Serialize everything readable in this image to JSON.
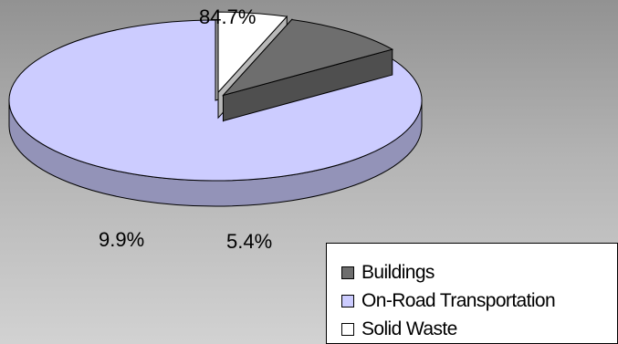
{
  "chart_data": {
    "type": "pie",
    "title": "",
    "slices": [
      {
        "label": "Buildings",
        "value": 9.9,
        "value_label": "9.9%",
        "color": "#6e6e6e"
      },
      {
        "label": "On-Road Transportation",
        "value": 84.7,
        "value_label": "84.7%",
        "color": "#ccccff"
      },
      {
        "label": "Solid Waste",
        "value": 5.4,
        "value_label": "5.4%",
        "color": "#ffffff"
      }
    ],
    "style": "3d-exploded",
    "legend": {
      "position": "bottom-right"
    }
  }
}
